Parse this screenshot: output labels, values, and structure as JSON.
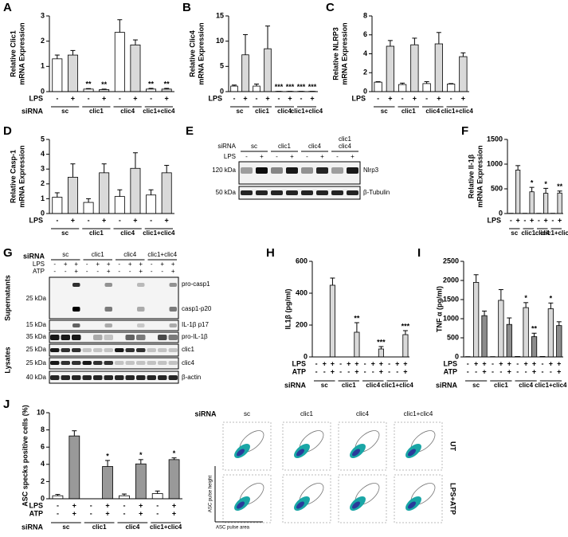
{
  "chart_data": [
    {
      "type": "bar",
      "panel": "A",
      "ylabel": [
        "Relative Clic1",
        "mRNA Expression"
      ],
      "ylim": [
        0,
        3
      ],
      "yticks": [
        0,
        1,
        2,
        3
      ],
      "values": [
        1.3,
        1.45,
        0.1,
        0.08,
        2.35,
        1.85,
        0.1,
        0.1
      ],
      "errors": [
        0.15,
        0.18,
        0.02,
        0.02,
        0.5,
        0.2,
        0.03,
        0.03
      ],
      "stars": [
        null,
        null,
        "**",
        "**",
        null,
        null,
        "**",
        "**"
      ],
      "colors": [
        "#ffffff",
        "#d9d9d9"
      ],
      "conditions": [
        {
          "name": "LPS",
          "values": [
            "-",
            "+",
            "-",
            "+",
            "-",
            "+",
            "-",
            "+"
          ]
        }
      ],
      "siRNA": "siRNA",
      "groups": [
        "sc",
        "clic1",
        "clic4",
        "clic1+clic4"
      ]
    },
    {
      "type": "bar",
      "panel": "B",
      "ylabel": [
        "Relative Clic4",
        "mRNA Expression"
      ],
      "ylim": [
        0,
        15
      ],
      "yticks": [
        0,
        5,
        10,
        15
      ],
      "values": [
        1.1,
        7.3,
        1.1,
        8.5,
        0.05,
        0.05,
        0.05,
        0.05
      ],
      "errors": [
        0.2,
        4,
        0.4,
        4.5,
        0,
        0,
        0,
        0
      ],
      "stars": [
        null,
        null,
        null,
        null,
        "***",
        "***",
        "***",
        "***"
      ],
      "colors": [
        "#ffffff",
        "#d9d9d9"
      ],
      "conditions": [
        {
          "name": "LPS",
          "values": [
            "-",
            "+",
            "-",
            "+",
            "-",
            "+",
            "-",
            "+"
          ]
        }
      ],
      "siRNA": null,
      "groups": [
        "sc",
        "clic1",
        "clic4",
        "clic1+clic4"
      ]
    },
    {
      "type": "bar",
      "panel": "C",
      "ylabel": [
        "Relative NLRP3",
        "mRNA Expression"
      ],
      "ylim": [
        0,
        8
      ],
      "yticks": [
        0,
        2,
        4,
        6,
        8
      ],
      "values": [
        1.0,
        4.8,
        0.75,
        4.95,
        0.85,
        5.05,
        0.8,
        3.7
      ],
      "errors": [
        0.05,
        0.6,
        0.15,
        0.7,
        0.2,
        1.2,
        0.05,
        0.4
      ],
      "stars": [
        null,
        null,
        null,
        null,
        null,
        null,
        null,
        null
      ],
      "colors": [
        "#ffffff",
        "#d9d9d9"
      ],
      "conditions": [
        {
          "name": "LPS",
          "values": [
            "-",
            "+",
            "-",
            "+",
            "-",
            "+",
            "-",
            "+"
          ]
        }
      ],
      "siRNA": null,
      "groups": [
        "sc",
        "clic1",
        "clic4",
        "clic1+clic4"
      ]
    },
    {
      "type": "bar",
      "panel": "D",
      "ylabel": [
        "Relative Casp-1",
        "mRNA Expression"
      ],
      "ylim": [
        0,
        5
      ],
      "yticks": [
        0,
        1,
        2,
        3,
        4,
        5
      ],
      "values": [
        1.1,
        2.45,
        0.75,
        2.75,
        1.15,
        3.05,
        1.25,
        2.75
      ],
      "errors": [
        0.3,
        0.9,
        0.25,
        0.6,
        0.45,
        1.05,
        0.35,
        0.5
      ],
      "stars": [
        null,
        null,
        null,
        null,
        null,
        null,
        null,
        null
      ],
      "colors": [
        "#ffffff",
        "#d9d9d9"
      ],
      "conditions": [
        {
          "name": "LPS",
          "values": [
            "-",
            "+",
            "-",
            "+",
            "-",
            "+",
            "-",
            "+"
          ]
        }
      ],
      "siRNA": null,
      "groups": [
        "sc",
        "clic1",
        "clic4",
        "clic1+clic4"
      ]
    },
    {
      "type": "bar",
      "panel": "F",
      "ylabel": [
        "Relative Il-1β",
        "mRNA Expression"
      ],
      "ylim": [
        0,
        1500
      ],
      "yticks": [
        0,
        500,
        1000,
        1500
      ],
      "values": [
        3,
        880,
        3,
        440,
        3,
        410,
        3,
        415
      ],
      "errors": [
        0,
        90,
        0,
        90,
        0,
        100,
        0,
        40
      ],
      "stars": [
        null,
        null,
        null,
        "*",
        null,
        "*",
        null,
        "**"
      ],
      "colors": [
        "#d9d9d9",
        "#d9d9d9"
      ],
      "conditions": [
        {
          "name": "LPS",
          "values": [
            "-",
            "+",
            "-",
            "+",
            "-",
            "+",
            "-",
            "+"
          ]
        }
      ],
      "siRNA": null,
      "groups": [
        "sc",
        "clic1",
        "clic4",
        "clic1+clic4"
      ]
    },
    {
      "type": "bar",
      "panel": "H",
      "ylabel": [
        "IL1β (pg/ml)"
      ],
      "ylim": [
        0,
        600
      ],
      "yticks": [
        0,
        200,
        400,
        600
      ],
      "values": [
        0,
        0,
        450,
        0,
        0,
        155,
        0,
        0,
        50,
        0,
        0,
        140
      ],
      "errors": [
        0,
        0,
        45,
        0,
        0,
        60,
        0,
        0,
        15,
        0,
        0,
        25
      ],
      "stars": [
        null,
        null,
        null,
        null,
        null,
        "**",
        null,
        null,
        "***",
        null,
        null,
        "***"
      ],
      "colors": [
        "#d9d9d9",
        "#d9d9d9",
        "#d9d9d9"
      ],
      "conditions": [
        {
          "name": "LPS",
          "values": [
            "-",
            "+",
            "+",
            "-",
            "+",
            "+",
            "-",
            "+",
            "+",
            "-",
            "+",
            "+"
          ]
        },
        {
          "name": "ATP",
          "values": [
            "-",
            "-",
            "+",
            "-",
            "-",
            "+",
            "-",
            "-",
            "+",
            "-",
            "-",
            "+"
          ]
        }
      ],
      "siRNA": "siRNA",
      "groups": [
        "sc",
        "clic1",
        "clic4",
        "clic1+clic4"
      ]
    },
    {
      "type": "bar",
      "panel": "I",
      "ylabel": [
        "TNF α (pg/ml)"
      ],
      "ylim": [
        0,
        2500
      ],
      "yticks": [
        0,
        500,
        1000,
        1500,
        2000,
        2500
      ],
      "values": [
        5,
        1950,
        1080,
        5,
        1480,
        850,
        10,
        1290,
        530,
        10,
        1260,
        820
      ],
      "errors": [
        0,
        200,
        120,
        0,
        280,
        170,
        0,
        130,
        90,
        0,
        150,
        100
      ],
      "stars": [
        null,
        null,
        null,
        null,
        null,
        null,
        null,
        "*",
        "**",
        null,
        "*",
        null
      ],
      "colors": [
        "#d9d9d9",
        "#d9d9d9",
        "#8c8c8c"
      ],
      "conditions": [
        {
          "name": "LPS",
          "values": [
            "-",
            "+",
            "+",
            "-",
            "+",
            "+",
            "-",
            "+",
            "+",
            "-",
            "+",
            "+"
          ]
        },
        {
          "name": "ATP",
          "values": [
            "-",
            "-",
            "+",
            "-",
            "-",
            "+",
            "-",
            "-",
            "+",
            "-",
            "-",
            "+"
          ]
        }
      ],
      "siRNA": "siRNA",
      "groups": [
        "sc",
        "clic1",
        "clic4",
        "clic1+clic4"
      ]
    },
    {
      "type": "bar",
      "panel": "J",
      "ylabel": [
        "ASC specks positive cells (%)"
      ],
      "ylim": [
        0,
        10
      ],
      "yticks": [
        0,
        2,
        4,
        6,
        8,
        10
      ],
      "values": [
        0.35,
        7.3,
        0,
        3.75,
        0.35,
        4.05,
        0.6,
        4.55
      ],
      "errors": [
        0.15,
        0.6,
        0,
        0.7,
        0.2,
        0.5,
        0.3,
        0.2
      ],
      "stars": [
        null,
        null,
        null,
        "*",
        null,
        "*",
        null,
        "*"
      ],
      "colors": [
        "#ffffff",
        "#999999"
      ],
      "conditions": [
        {
          "name": "LPS",
          "values": [
            "-",
            "+",
            "-",
            "+",
            "-",
            "+",
            "-",
            "+"
          ]
        },
        {
          "name": "ATP",
          "values": [
            "-",
            "+",
            "-",
            "+",
            "-",
            "+",
            "-",
            "+"
          ]
        }
      ],
      "siRNA": "siRNA",
      "groups": [
        "sc",
        "clic1",
        "clic4",
        "clic1+clic4"
      ]
    }
  ],
  "blot_e": {
    "panel": "E",
    "siRNA": "siRNA",
    "groups": [
      [
        "sc"
      ],
      [
        "clic1"
      ],
      [
        "clic4"
      ],
      [
        "clic1",
        "clic4"
      ]
    ],
    "condition": "LPS",
    "lanes": [
      "-",
      "+",
      "-",
      "+",
      "-",
      "+",
      "-",
      "+"
    ],
    "sizes": [
      "120 kDa",
      "50 kDa"
    ],
    "proteins": [
      "Nlrp3",
      "β-Tubulin"
    ]
  },
  "blot_g": {
    "panel": "G",
    "siRNA": "siRNA",
    "groups": [
      "sc",
      "clic1",
      "clic4",
      "clic1+clic4"
    ],
    "conditions": [
      {
        "name": "LPS",
        "values": [
          "-",
          "+",
          "+",
          "-",
          "+",
          "+",
          "-",
          "+",
          "+",
          "-",
          "+",
          "+"
        ]
      },
      {
        "name": "ATP",
        "values": [
          "-",
          "-",
          "+",
          "-",
          "-",
          "+",
          "-",
          "-",
          "+",
          "-",
          "-",
          "+"
        ]
      }
    ],
    "fractions": [
      "Supernatants",
      "Lysates"
    ],
    "sizes": [
      "25 kDa",
      "15 kDa",
      "35 kDa",
      "25 kDa",
      "25 kDa",
      "40 kDa"
    ],
    "proteins": [
      "pro-casp1",
      "casp1-p20",
      "IL-1β p17",
      "pro-IL-1β",
      "clic1",
      "clic4",
      "β-actin"
    ]
  },
  "flow_j": {
    "siRNA": "siRNA",
    "groups": [
      "sc",
      "clic1",
      "clic4",
      "clic1+clic4"
    ],
    "rows": [
      "UT",
      "LPS+ATP"
    ],
    "ylabel": "ASC pulse height",
    "xlabel": "ASC pulse area"
  }
}
